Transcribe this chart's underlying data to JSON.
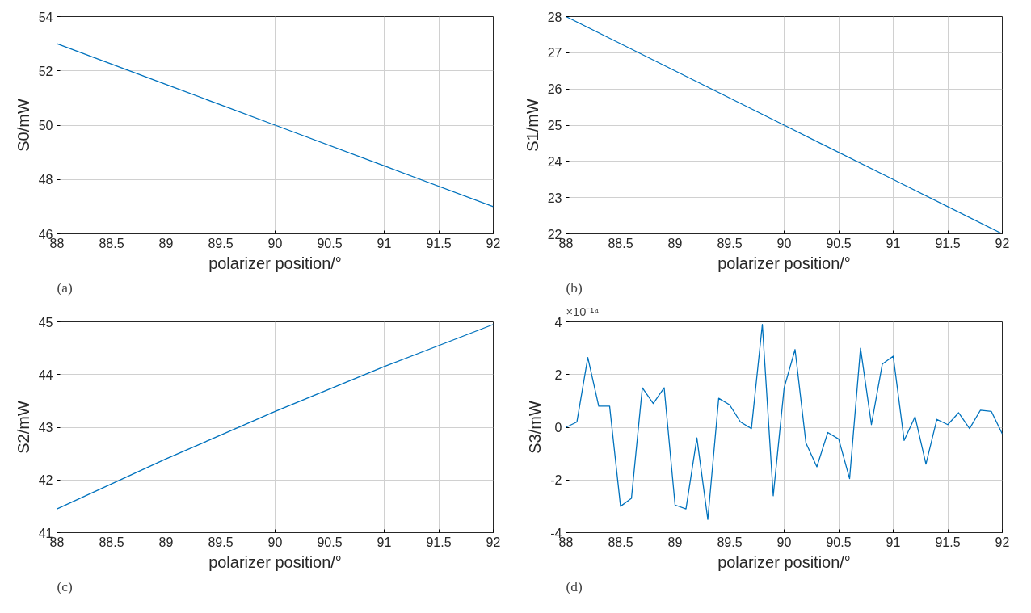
{
  "chart_data": [
    {
      "type": "line",
      "x": [
        88,
        89,
        90,
        91,
        92
      ],
      "values": [
        53,
        51.5,
        50,
        48.5,
        47
      ],
      "color": "#0072bd",
      "xlabel": "polarizer position/°",
      "ylabel": "S0/mW",
      "xlim": [
        88,
        92
      ],
      "ylim": [
        46,
        54
      ],
      "xticks": [
        88,
        88.5,
        89,
        89.5,
        90,
        90.5,
        91,
        91.5,
        92
      ],
      "yticks": [
        46,
        48,
        50,
        52,
        54
      ],
      "grid": true,
      "annotations": [
        "(a)"
      ]
    },
    {
      "type": "line",
      "x": [
        88,
        89,
        90,
        91,
        92
      ],
      "values": [
        28,
        26.5,
        25,
        23.5,
        22
      ],
      "color": "#0072bd",
      "xlabel": "polarizer position/°",
      "ylabel": "S1/mW",
      "xlim": [
        88,
        92
      ],
      "ylim": [
        22,
        28
      ],
      "xticks": [
        88,
        88.5,
        89,
        89.5,
        90,
        90.5,
        91,
        91.5,
        92
      ],
      "yticks": [
        22,
        23,
        24,
        25,
        26,
        27,
        28
      ],
      "grid": true,
      "annotations": [
        "(b)"
      ]
    },
    {
      "type": "line",
      "x": [
        88,
        89,
        90,
        91,
        92
      ],
      "values": [
        41.45,
        42.4,
        43.3,
        44.15,
        44.95
      ],
      "color": "#0072bd",
      "xlabel": "polarizer position/°",
      "ylabel": "S2/mW",
      "xlim": [
        88,
        92
      ],
      "ylim": [
        41,
        45
      ],
      "xticks": [
        88,
        88.5,
        89,
        89.5,
        90,
        90.5,
        91,
        91.5,
        92
      ],
      "yticks": [
        41,
        42,
        43,
        44,
        45
      ],
      "grid": true,
      "annotations": [
        "(c)"
      ]
    },
    {
      "type": "line",
      "x": [
        88,
        88.1,
        88.2,
        88.3,
        88.4,
        88.5,
        88.6,
        88.7,
        88.8,
        88.9,
        89,
        89.1,
        89.2,
        89.3,
        89.4,
        89.5,
        89.6,
        89.7,
        89.8,
        89.9,
        90,
        90.1,
        90.2,
        90.3,
        90.4,
        90.5,
        90.6,
        90.7,
        90.8,
        90.9,
        91,
        91.1,
        91.2,
        91.3,
        91.4,
        91.5,
        91.6,
        91.7,
        91.8,
        91.9,
        92
      ],
      "values": [
        0,
        0.2,
        2.65,
        0.8,
        0.8,
        -3.0,
        -2.7,
        1.5,
        0.9,
        1.5,
        -2.95,
        -3.1,
        -0.4,
        -3.5,
        1.1,
        0.85,
        0.2,
        -0.05,
        3.9,
        -2.6,
        1.5,
        2.95,
        -0.6,
        -1.5,
        -0.2,
        -0.45,
        -1.95,
        3.0,
        0.1,
        2.4,
        2.7,
        -0.5,
        0.4,
        -1.4,
        0.3,
        0.1,
        0.55,
        -0.05,
        0.65,
        0.6,
        -0.25
      ],
      "color": "#0072bd",
      "xlabel": "polarizer position/°",
      "ylabel": "S3/mW",
      "xlim": [
        88,
        92
      ],
      "ylim": [
        -4,
        4
      ],
      "xticks": [
        88,
        88.5,
        89,
        89.5,
        90,
        90.5,
        91,
        91.5,
        92
      ],
      "yticks": [
        -4,
        -2,
        0,
        2,
        4
      ],
      "grid": true,
      "annotations": [
        "(d)",
        "×10⁻¹⁴"
      ]
    }
  ]
}
